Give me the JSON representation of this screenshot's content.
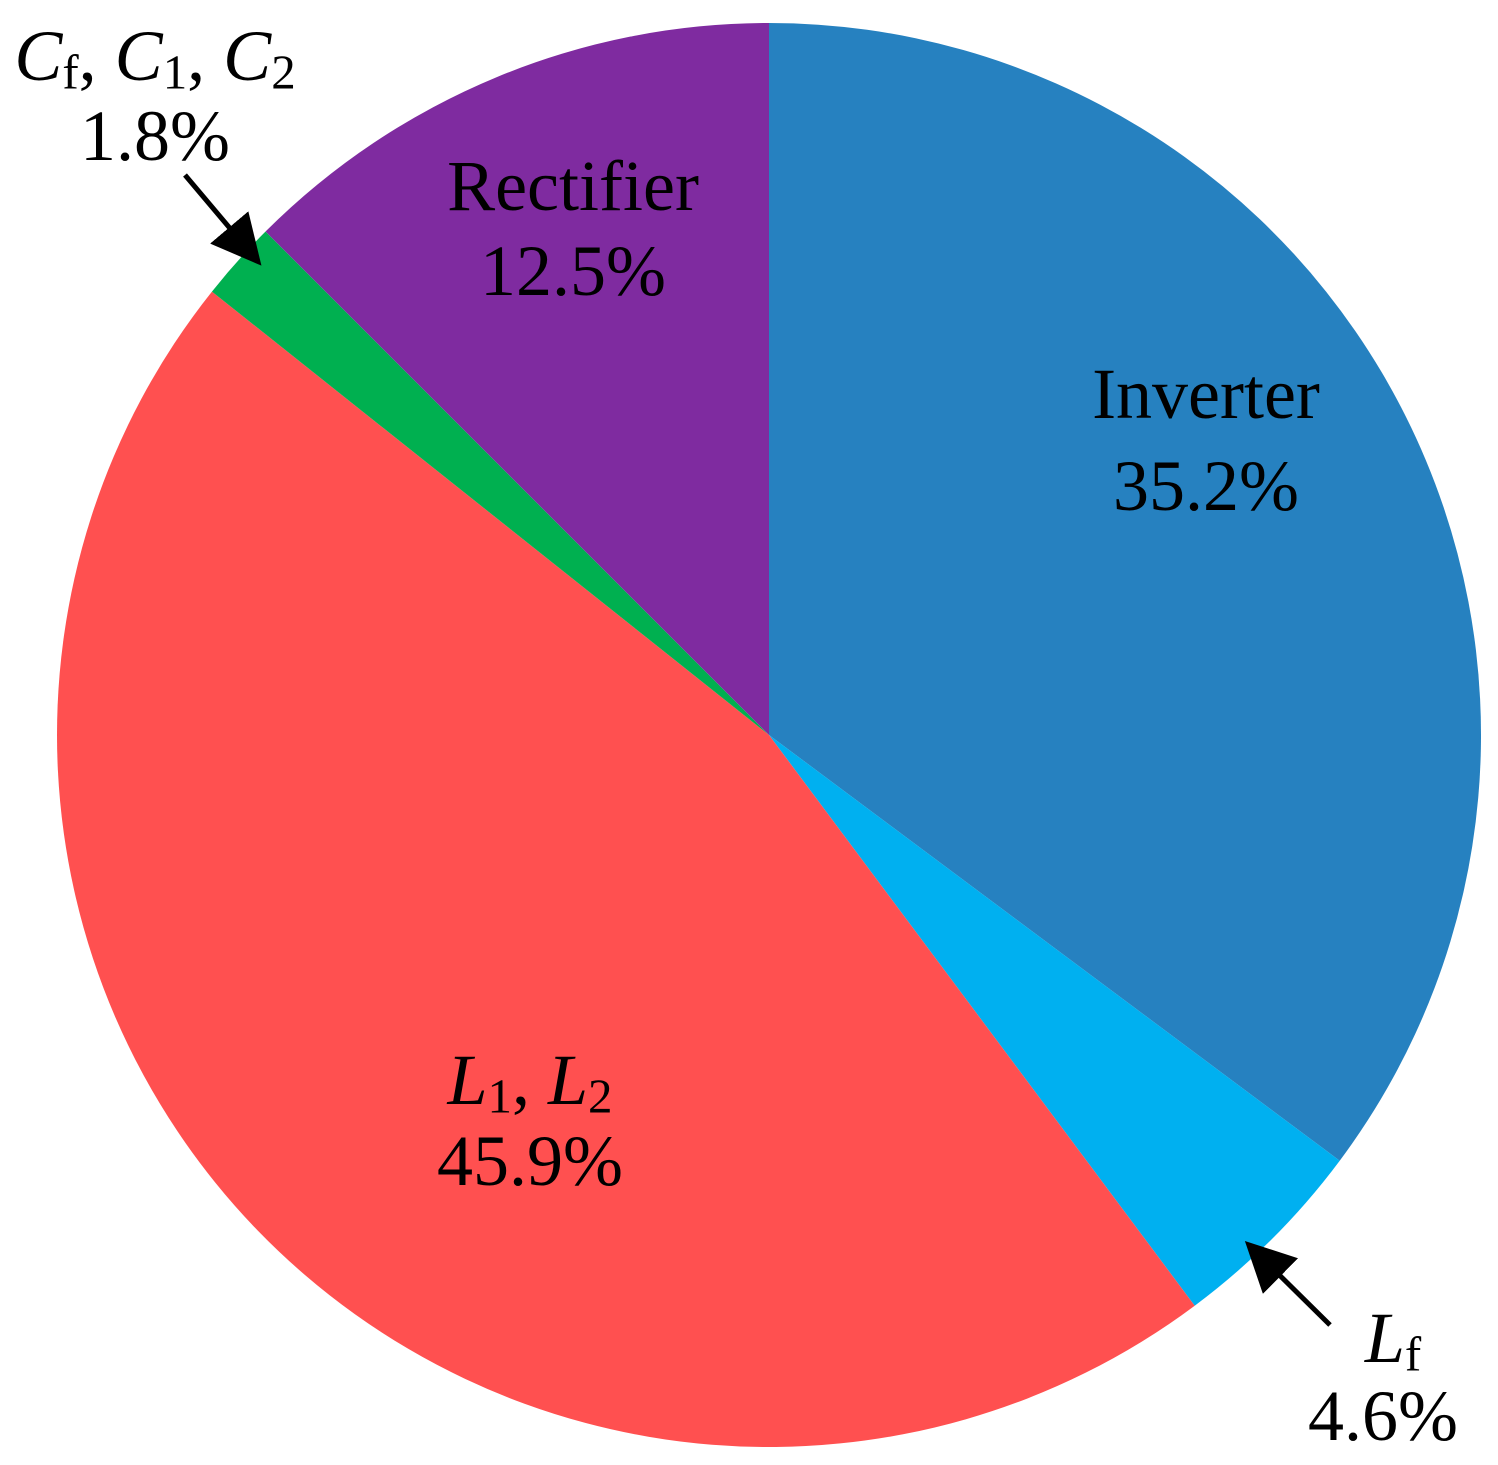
{
  "chart_data": {
    "type": "pie",
    "start": "12 o'clock",
    "direction": "clockwise",
    "slices": [
      {
        "key": "inverter",
        "name": "Inverter",
        "value": 35.2,
        "value_label": "35.2%",
        "color": "#2681C0",
        "italic": false,
        "subscript": ""
      },
      {
        "key": "lf",
        "name": "L",
        "subscript": "f",
        "value": 4.6,
        "value_label": "4.6%",
        "color": "#00B0F0",
        "italic": true
      },
      {
        "key": "l1l2",
        "name": "L1, L2",
        "value": 45.9,
        "value_label": "45.9%",
        "color": "#FF5050",
        "italic": true,
        "parts": [
          {
            "t": "L",
            "sub": "1"
          },
          {
            "t": ", ",
            "sub": ""
          },
          {
            "t": "L",
            "sub": "2"
          }
        ]
      },
      {
        "key": "caps",
        "name": "Cf, C1, C2",
        "value": 1.8,
        "value_label": "1.8%",
        "color": "#00B050",
        "italic": true,
        "parts": [
          {
            "t": "C",
            "sub": "f"
          },
          {
            "t": ", ",
            "sub": ""
          },
          {
            "t": "C",
            "sub": "1"
          },
          {
            "t": ", ",
            "sub": ""
          },
          {
            "t": "C",
            "sub": "2"
          }
        ]
      },
      {
        "key": "rectifier",
        "name": "Rectifier",
        "value": 12.5,
        "value_label": "12.5%",
        "color": "#7F2BA0",
        "italic": false,
        "subscript": ""
      }
    ]
  }
}
